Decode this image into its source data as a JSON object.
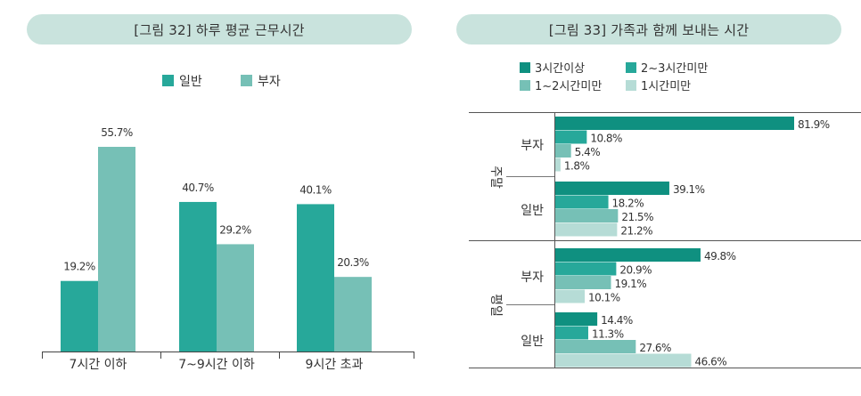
{
  "colors": {
    "dark": "#0f9080",
    "mid": "#27a89a",
    "light": "#76c0b6",
    "pale": "#b6dcd6",
    "title_bg": "#c9e3dd"
  },
  "left": {
    "title": "[그림 32] 하루 평균 근무시간",
    "chart_data": {
      "type": "bar",
      "categories": [
        "7시간 이하",
        "7~9시간 이하",
        "9시간 초과"
      ],
      "series": [
        {
          "name": "일반",
          "values": [
            19.2,
            40.7,
            40.1
          ],
          "labels": [
            "19.2%",
            "40.7%",
            "40.1%"
          ]
        },
        {
          "name": "부자",
          "values": [
            55.7,
            29.2,
            20.3
          ],
          "labels": [
            "55.7%",
            "29.2%",
            "20.3%"
          ]
        }
      ],
      "ylim": [
        0,
        70
      ]
    }
  },
  "right": {
    "title": "[그림 33] 가족과 함께 보내는 시간",
    "chart_data": {
      "type": "bar",
      "orientation": "horizontal",
      "legend": [
        "3시간이상",
        "2~3시간미만",
        "1~2시간미만",
        "1시간미만"
      ],
      "groups": [
        {
          "label": "주말",
          "rows": [
            {
              "label": "부자",
              "values": [
                81.9,
                10.8,
                5.4,
                1.8
              ],
              "labels": [
                "81.9%",
                "10.8%",
                "5.4%",
                "1.8%"
              ]
            },
            {
              "label": "일반",
              "values": [
                39.1,
                18.2,
                21.5,
                21.2
              ],
              "labels": [
                "39.1%",
                "18.2%",
                "21.5%",
                "21.2%"
              ]
            }
          ]
        },
        {
          "label": "평일",
          "rows": [
            {
              "label": "부자",
              "values": [
                49.8,
                20.9,
                19.1,
                10.1
              ],
              "labels": [
                "49.8%",
                "20.9%",
                "19.1%",
                "10.1%"
              ]
            },
            {
              "label": "일반",
              "values": [
                14.4,
                11.3,
                27.6,
                46.6
              ],
              "labels": [
                "14.4%",
                "11.3%",
                "27.6%",
                "46.6%"
              ]
            }
          ]
        }
      ],
      "xlim": [
        0,
        100
      ]
    }
  }
}
